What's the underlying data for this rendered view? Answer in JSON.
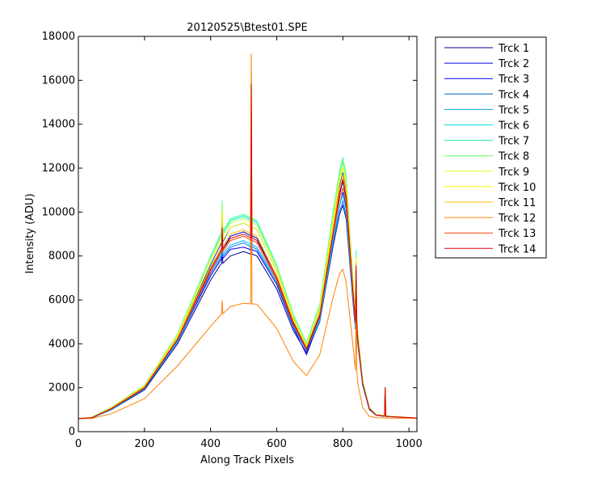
{
  "chart_data": {
    "type": "line",
    "title": "20120525\\Btest01.SPE",
    "xlabel": "Along Track Pixels",
    "ylabel": "Intensity (ADU)",
    "xlim": [
      0,
      1024
    ],
    "ylim": [
      0,
      18000
    ],
    "xticks": [
      0,
      200,
      400,
      600,
      800,
      1000
    ],
    "yticks": [
      0,
      2000,
      4000,
      6000,
      8000,
      10000,
      12000,
      14000,
      16000,
      18000
    ],
    "grid": false,
    "legend_position": "outside-right",
    "x": [
      0,
      40,
      100,
      200,
      300,
      400,
      430,
      460,
      500,
      540,
      600,
      650,
      690,
      730,
      770,
      790,
      800,
      810,
      830,
      845,
      860,
      880,
      900,
      940,
      1000,
      1024
    ],
    "series": [
      {
        "name": "Trck 1",
        "color": "#00008f",
        "values": [
          600,
          620,
          1000,
          1900,
          4000,
          6900,
          7600,
          8000,
          8200,
          8000,
          6500,
          4600,
          3600,
          5000,
          8400,
          9900,
          10300,
          9700,
          6000,
          4000,
          2100,
          1000,
          750,
          680,
          630,
          620
        ],
        "spikes": [
          [
            435,
            900
          ],
          [
            523,
            6000
          ],
          [
            840,
            2000
          ],
          [
            928,
            1200
          ]
        ]
      },
      {
        "name": "Trck 2",
        "color": "#0000bf",
        "values": [
          600,
          630,
          1050,
          2000,
          4200,
          7400,
          8200,
          8900,
          9100,
          8800,
          7000,
          5000,
          3800,
          5300,
          9000,
          10800,
          11400,
          10600,
          6500,
          4200,
          2200,
          1050,
          760,
          690,
          640,
          620
        ],
        "spikes": [
          [
            435,
            1000
          ],
          [
            523,
            6500
          ],
          [
            840,
            2500
          ],
          [
            928,
            1300
          ]
        ]
      },
      {
        "name": "Trck 3",
        "color": "#0000ef",
        "values": [
          600,
          630,
          1020,
          1950,
          4100,
          7100,
          7800,
          8300,
          8400,
          8200,
          6700,
          4750,
          3500,
          5100,
          8600,
          10300,
          10900,
          10200,
          6200,
          4100,
          2150,
          1030,
          760,
          690,
          640,
          620
        ],
        "spikes": [
          [
            435,
            900
          ],
          [
            523,
            6000
          ],
          [
            840,
            2200
          ],
          [
            928,
            1250
          ]
        ]
      },
      {
        "name": "Trck 4",
        "color": "#0040ff",
        "values": [
          600,
          640,
          1080,
          2050,
          4300,
          7600,
          8500,
          9300,
          9500,
          9200,
          7300,
          5200,
          3900,
          5500,
          9400,
          11200,
          11800,
          11000,
          6800,
          4400,
          2250,
          1080,
          770,
          700,
          640,
          620
        ],
        "spikes": [
          [
            435,
            1200
          ],
          [
            523,
            6800
          ],
          [
            840,
            2600
          ],
          [
            928,
            1300
          ]
        ]
      },
      {
        "name": "Trck 5",
        "color": "#0080ff",
        "values": [
          600,
          620,
          1010,
          1950,
          4100,
          7200,
          7900,
          8400,
          8600,
          8300,
          6800,
          4800,
          3700,
          5000,
          8500,
          10000,
          10500,
          9900,
          6100,
          4000,
          2100,
          1020,
          750,
          680,
          630,
          620
        ],
        "spikes": [
          [
            435,
            900
          ],
          [
            523,
            6000
          ],
          [
            840,
            2200
          ],
          [
            928,
            1200
          ]
        ]
      },
      {
        "name": "Trck 6",
        "color": "#00bfff",
        "values": [
          600,
          620,
          1020,
          1960,
          4150,
          7300,
          8000,
          8500,
          8700,
          8400,
          6900,
          4900,
          3750,
          5100,
          8700,
          10300,
          10800,
          10100,
          6200,
          4050,
          2120,
          1030,
          755,
          685,
          635,
          620
        ],
        "spikes": [
          [
            435,
            950
          ],
          [
            523,
            6200
          ],
          [
            840,
            2300
          ],
          [
            928,
            1250
          ]
        ]
      },
      {
        "name": "Trck 7",
        "color": "#00ffff",
        "values": [
          600,
          650,
          1100,
          2100,
          4400,
          7900,
          8900,
          9600,
          9800,
          9500,
          7500,
          5300,
          4000,
          5700,
          9800,
          11700,
          12300,
          11500,
          7000,
          4500,
          2300,
          1100,
          780,
          700,
          645,
          620
        ],
        "spikes": [
          [
            435,
            1300
          ],
          [
            523,
            7000
          ],
          [
            840,
            2800
          ],
          [
            928,
            1300
          ]
        ]
      },
      {
        "name": "Trck 8",
        "color": "#40ffbf",
        "values": [
          600,
          650,
          1110,
          2110,
          4450,
          8000,
          9000,
          9700,
          9900,
          9600,
          7600,
          5350,
          4050,
          5800,
          10000,
          11900,
          12500,
          11700,
          7100,
          4550,
          2320,
          1110,
          780,
          700,
          645,
          620
        ],
        "spikes": [
          [
            435,
            1400
          ],
          [
            523,
            7200
          ],
          [
            840,
            2900
          ],
          [
            928,
            1350
          ]
        ]
      },
      {
        "name": "Trck 9",
        "color": "#80ff80",
        "values": [
          600,
          650,
          1110,
          2110,
          4450,
          7950,
          8950,
          9650,
          9850,
          9550,
          7550,
          5300,
          4000,
          5750,
          9900,
          11800,
          12400,
          11600,
          7050,
          4500,
          2300,
          1100,
          780,
          700,
          645,
          620
        ],
        "spikes": [
          [
            435,
            1350
          ],
          [
            523,
            7100
          ],
          [
            840,
            2800
          ],
          [
            928,
            1300
          ]
        ]
      },
      {
        "name": "Trck 10",
        "color": "#bfff40",
        "values": [
          600,
          645,
          1100,
          2090,
          4400,
          7850,
          8800,
          9500,
          9700,
          9400,
          7450,
          5250,
          3950,
          5650,
          9700,
          11600,
          12200,
          11400,
          6950,
          4450,
          2280,
          1090,
          775,
          700,
          645,
          620
        ],
        "spikes": [
          [
            435,
            1300
          ],
          [
            523,
            7000
          ],
          [
            840,
            2700
          ],
          [
            928,
            1300
          ]
        ]
      },
      {
        "name": "Trck 11",
        "color": "#ffff00",
        "values": [
          600,
          640,
          1080,
          2060,
          4350,
          7700,
          8600,
          9300,
          9500,
          9200,
          7300,
          5150,
          3900,
          5550,
          9500,
          11400,
          12000,
          11200,
          6850,
          4400,
          2250,
          1080,
          770,
          700,
          640,
          620
        ],
        "spikes": [
          [
            435,
            1250
          ],
          [
            523,
            7800
          ],
          [
            840,
            2700
          ],
          [
            928,
            1300
          ]
        ]
      },
      {
        "name": "Trck 12",
        "color": "#ffbf00",
        "values": [
          600,
          635,
          1070,
          2040,
          4300,
          7500,
          8300,
          9000,
          9200,
          8900,
          7100,
          5050,
          3850,
          5450,
          9300,
          11100,
          11700,
          10900,
          6700,
          4300,
          2230,
          1070,
          765,
          695,
          640,
          620
        ],
        "spikes": [
          [
            435,
            1200
          ],
          [
            523,
            7500
          ],
          [
            840,
            2600
          ],
          [
            928,
            1300
          ]
        ]
      },
      {
        "name": "Trck 13",
        "color": "#ff8000",
        "values": [
          600,
          600,
          820,
          1500,
          3000,
          4800,
          5300,
          5700,
          5850,
          5800,
          4700,
          3200,
          2550,
          3500,
          6100,
          7200,
          7400,
          6800,
          4000,
          2200,
          1100,
          700,
          640,
          620,
          610,
          600
        ],
        "spikes": [
          [
            435,
            600
          ],
          [
            523,
            11400
          ],
          [
            840,
            3500
          ],
          [
            928,
            800
          ]
        ]
      },
      {
        "name": "Trck 14",
        "color": "#ff4000",
        "values": [
          600,
          630,
          1040,
          1990,
          4200,
          7300,
          8100,
          8700,
          8900,
          8600,
          6900,
          4900,
          3750,
          5200,
          8900,
          10600,
          11100,
          10400,
          6400,
          4150,
          2180,
          1050,
          760,
          690,
          640,
          620
        ],
        "spikes": [
          [
            435,
            1100
          ],
          [
            523,
            6600
          ],
          [
            840,
            2500
          ],
          [
            928,
            1300
          ]
        ]
      },
      {
        "name": "",
        "color": "#df0000",
        "values": [
          600,
          630,
          1050,
          2000,
          4200,
          7400,
          8200,
          8800,
          9000,
          8700,
          7000,
          4950,
          3750,
          5250,
          9000,
          10900,
          11500,
          10700,
          6500,
          4200,
          2200,
          1050,
          760,
          690,
          640,
          620
        ],
        "spikes": [
          [
            435,
            1000
          ],
          [
            523,
            7000
          ],
          [
            840,
            2600
          ],
          [
            928,
            1300
          ]
        ]
      }
    ]
  },
  "legend": {
    "entries": [
      "Trck 1",
      "Trck 2",
      "Trck 3",
      "Trck 4",
      "Trck 5",
      "Trck 6",
      "Trck 7",
      "Trck 8",
      "Trck 9",
      "Trck 10",
      "Trck 11",
      "Trck 12",
      "Trck 13",
      "Trck 14"
    ],
    "colors": [
      "#00008f",
      "#0000df",
      "#0000ff",
      "#0060bf",
      "#00a0df",
      "#00dfdf",
      "#20ef9f",
      "#60ff60",
      "#dfff20",
      "#ffff00",
      "#ffbf00",
      "#ff8000",
      "#ff4000",
      "#df0000"
    ]
  }
}
